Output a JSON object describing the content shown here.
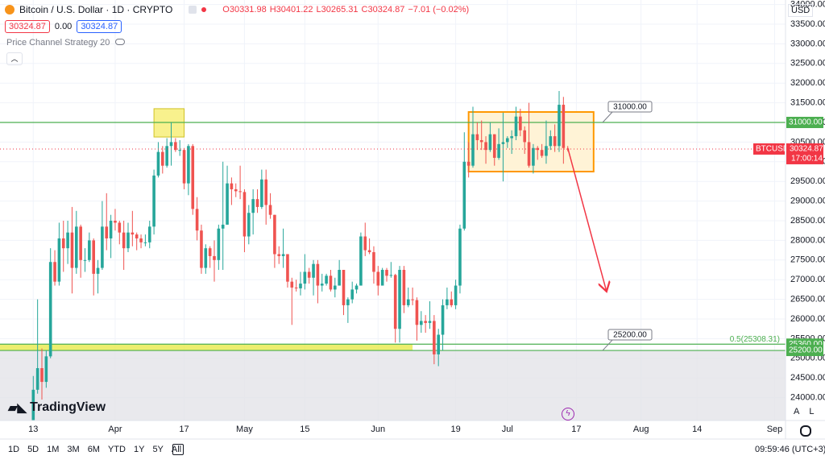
{
  "ui": {
    "symbol": "Bitcoin / U.S. Dollar · 1D · CRYPTO",
    "ohlc": [
      "O30331.98",
      "H30401.22",
      "L30265.31",
      "C30324.87",
      "−7.01 (−0.02%)"
    ],
    "sell": "30324.87",
    "spread": "0.00",
    "buy": "30324.87",
    "indicator": "Price Channel Strategy 20",
    "currency": "USD",
    "countdown": "17:00:14",
    "logo": "TradingView",
    "ranges": [
      "1D",
      "5D",
      "1M",
      "3M",
      "6M",
      "YTD",
      "1Y",
      "5Y",
      "All"
    ],
    "clock": "09:59:46 (UTC+3)",
    "scale_buttons": [
      "A",
      "L"
    ],
    "fib_label": "0.5(25308.31)"
  },
  "chart_data": {
    "type": "candlestick",
    "x": [
      "Mar 13",
      "Mar 14",
      "Mar 15",
      "Mar 16",
      "Mar 17",
      "Mar 18",
      "Mar 19",
      "Mar 20",
      "Mar 21",
      "Mar 22",
      "Mar 23",
      "Mar 24",
      "Mar 25",
      "Mar 26",
      "Mar 27",
      "Mar 28",
      "Mar 29",
      "Mar 30",
      "Mar 31",
      "Apr 1",
      "Apr 2",
      "Apr 3",
      "Apr 4",
      "Apr 5",
      "Apr 6",
      "Apr 7",
      "Apr 8",
      "Apr 9",
      "Apr 10",
      "Apr 11",
      "Apr 12",
      "Apr 13",
      "Apr 14",
      "Apr 15",
      "Apr 16",
      "Apr 17",
      "Apr 18",
      "Apr 19",
      "Apr 20",
      "Apr 21",
      "Apr 22",
      "Apr 23",
      "Apr 24",
      "Apr 25",
      "Apr 26",
      "Apr 27",
      "Apr 28",
      "Apr 29",
      "Apr 30",
      "May 1",
      "May 2",
      "May 3",
      "May 4",
      "May 5",
      "May 6",
      "May 7",
      "May 8",
      "May 9",
      "May 10",
      "May 11",
      "May 12",
      "May 13",
      "May 14",
      "May 15",
      "May 16",
      "May 17",
      "May 18",
      "May 19",
      "May 20",
      "May 21",
      "May 22",
      "May 23",
      "May 24",
      "May 25",
      "May 26",
      "May 27",
      "May 28",
      "May 29",
      "May 30",
      "May 31",
      "Jun 1",
      "Jun 2",
      "Jun 3",
      "Jun 4",
      "Jun 5",
      "Jun 6",
      "Jun 7",
      "Jun 8",
      "Jun 9",
      "Jun 10",
      "Jun 11",
      "Jun 12",
      "Jun 13",
      "Jun 14",
      "Jun 15",
      "Jun 16",
      "Jun 17",
      "Jun 18",
      "Jun 19",
      "Jun 20",
      "Jun 21",
      "Jun 22",
      "Jun 23",
      "Jun 24",
      "Jun 25",
      "Jun 26",
      "Jun 27",
      "Jun 28",
      "Jun 29",
      "Jun 30",
      "Jul 1",
      "Jul 2",
      "Jul 3",
      "Jul 4",
      "Jul 5",
      "Jul 6",
      "Jul 7",
      "Jul 8",
      "Jul 9",
      "Jul 10",
      "Jul 11",
      "Jul 12",
      "Jul 13",
      "Jul 14",
      "Jul 15"
    ],
    "series": [
      {
        "name": "BTCUSD",
        "up_color": "#26a69a",
        "down_color": "#ef5350",
        "open": [
          22150,
          24200,
          24750,
          24400,
          25050,
          27450,
          26950,
          28050,
          27800,
          28200,
          27300,
          28350,
          27500,
          27500,
          28000,
          27150,
          27300,
          28350,
          28050,
          28500,
          28450,
          28200,
          27800,
          28200,
          28150,
          28050,
          27950,
          27950,
          28350,
          29650,
          30250,
          29900,
          30400,
          30500,
          30300,
          30300,
          29450,
          30400,
          28800,
          28250,
          27300,
          27800,
          27600,
          27500,
          28300,
          28400,
          29450,
          29300,
          29250,
          29230,
          28100,
          28700,
          29050,
          28850,
          29550,
          28900,
          28650,
          27650,
          27600,
          27650,
          26950,
          26800,
          26780,
          26900,
          27200,
          27050,
          27400,
          26850,
          26900,
          27100,
          26750,
          26850,
          27250,
          26350,
          26500,
          26750,
          26850,
          28100,
          27750,
          27700,
          27200,
          26850,
          27250,
          27100,
          27120,
          25750,
          27250,
          26350,
          26500,
          26480,
          25850,
          25950,
          25900,
          25950,
          25100,
          25600,
          26350,
          26500,
          26350,
          26850,
          28300,
          30000,
          29900,
          30700,
          30550,
          30500,
          30300,
          30700,
          30100,
          30450,
          30500,
          30600,
          30650,
          31150,
          30800,
          30500,
          29900,
          30350,
          30300,
          30150,
          30400,
          30650,
          30400,
          31450,
          30331.98
        ],
        "high": [
          24550,
          26500,
          25250,
          25200,
          27800,
          27750,
          28450,
          28500,
          28500,
          28850,
          28750,
          28400,
          27800,
          28200,
          28050,
          27500,
          29000,
          29200,
          28650,
          28800,
          28500,
          28500,
          28450,
          28750,
          28200,
          28150,
          28150,
          28500,
          29800,
          30500,
          30400,
          30600,
          31000,
          30600,
          30550,
          30350,
          30450,
          30450,
          29100,
          28400,
          27900,
          27850,
          28000,
          28400,
          30000,
          29900,
          29600,
          29450,
          29900,
          29300,
          28900,
          29300,
          29300,
          29800,
          29800,
          29200,
          28650,
          27850,
          28300,
          27650,
          27050,
          27000,
          27200,
          27650,
          27300,
          27500,
          27500,
          27150,
          27150,
          27250,
          27050,
          27500,
          27250,
          26550,
          26950,
          26900,
          28200,
          28450,
          28050,
          27850,
          27350,
          27300,
          27300,
          27450,
          27150,
          27350,
          27350,
          26800,
          26800,
          26550,
          26200,
          26100,
          26450,
          26100,
          25750,
          26500,
          26800,
          26700,
          27000,
          28400,
          30750,
          30500,
          31400,
          31000,
          31050,
          30650,
          31000,
          30700,
          30850,
          31250,
          30650,
          30800,
          31400,
          31350,
          30900,
          31500,
          30450,
          30400,
          30450,
          31050,
          30800,
          30950,
          31800,
          31650,
          30401.22
        ],
        "low": [
          21900,
          24100,
          23950,
          24250,
          25000,
          26850,
          26850,
          27200,
          27400,
          26650,
          27150,
          27050,
          27200,
          27450,
          26600,
          26650,
          27250,
          27750,
          27550,
          28250,
          27900,
          27250,
          27700,
          27850,
          27750,
          27800,
          27850,
          27800,
          28150,
          29600,
          29700,
          29850,
          29900,
          30250,
          30150,
          29300,
          29150,
          28650,
          28000,
          27150,
          27150,
          27300,
          26950,
          27250,
          27250,
          28400,
          28900,
          29100,
          29050,
          27700,
          27900,
          28150,
          28700,
          28800,
          28400,
          28550,
          27300,
          27400,
          27300,
          26800,
          25850,
          26700,
          26600,
          26750,
          26900,
          26600,
          26400,
          26700,
          26850,
          26700,
          26550,
          26850,
          26100,
          25900,
          26400,
          26650,
          26850,
          27600,
          27650,
          26900,
          26600,
          26850,
          26950,
          27050,
          25400,
          25400,
          26150,
          26300,
          26350,
          25450,
          25650,
          25650,
          25750,
          24850,
          24800,
          25200,
          26250,
          26300,
          26250,
          26650,
          28250,
          29600,
          29850,
          30300,
          30300,
          29950,
          30250,
          29900,
          30050,
          29500,
          30350,
          30200,
          30550,
          30650,
          30200,
          29850,
          29700,
          30050,
          30100,
          29950,
          30300,
          30250,
          30250,
          29950,
          30265.31
        ],
        "close": [
          24200,
          24750,
          24400,
          25050,
          27450,
          26950,
          28050,
          27800,
          28200,
          27300,
          28350,
          27500,
          27500,
          28000,
          27150,
          27300,
          28350,
          28050,
          28500,
          28450,
          28200,
          27800,
          28200,
          28150,
          28050,
          27950,
          27950,
          28350,
          29650,
          30250,
          29900,
          30400,
          30500,
          30300,
          30300,
          29450,
          30400,
          28800,
          28250,
          27300,
          27800,
          27600,
          27500,
          28300,
          28400,
          29450,
          29300,
          29250,
          29230,
          28100,
          28700,
          29050,
          28850,
          29550,
          28900,
          28650,
          27650,
          27600,
          27650,
          26950,
          26800,
          26780,
          26900,
          27200,
          27050,
          27400,
          26850,
          26900,
          27100,
          26750,
          26850,
          27250,
          26350,
          26500,
          26750,
          26850,
          28100,
          27750,
          27700,
          27200,
          26850,
          27250,
          27100,
          27120,
          25750,
          27250,
          26350,
          26500,
          26480,
          25850,
          25950,
          25900,
          25950,
          25100,
          25600,
          26350,
          26500,
          26350,
          26850,
          28300,
          30000,
          29900,
          30700,
          30550,
          30500,
          30300,
          30700,
          30100,
          30450,
          30500,
          30600,
          30650,
          31150,
          30800,
          30500,
          29900,
          30350,
          30300,
          30150,
          30400,
          30650,
          30400,
          31450,
          30350,
          30324.87
        ]
      }
    ],
    "ylim": [
      23418,
      34115
    ],
    "yticks": [
      {
        "value": 24000,
        "label": "24000.00"
      },
      {
        "value": 24500,
        "label": "24500.00"
      },
      {
        "value": 25000,
        "label": "25000.00"
      },
      {
        "value": 25500,
        "label": "25500.00"
      },
      {
        "value": 26000,
        "label": "26000.00"
      },
      {
        "value": 26500,
        "label": "26500.00"
      },
      {
        "value": 27000,
        "label": "27000.00"
      },
      {
        "value": 27500,
        "label": "27500.00"
      },
      {
        "value": 28000,
        "label": "28000.00"
      },
      {
        "value": 28500,
        "label": "28500.00"
      },
      {
        "value": 29000,
        "label": "29000.00"
      },
      {
        "value": 29500,
        "label": "29500.00"
      },
      {
        "value": 30000,
        "label": "30000.00"
      },
      {
        "value": 30500,
        "label": "30500.00"
      },
      {
        "value": 31000,
        "label": "31000.00"
      },
      {
        "value": 31500,
        "label": "31500.00"
      },
      {
        "value": 32000,
        "label": "32000.00"
      },
      {
        "value": 32500,
        "label": "32500.00"
      },
      {
        "value": 33000,
        "label": "33000.00"
      },
      {
        "value": 33500,
        "label": "33500.00"
      },
      {
        "value": 34000,
        "label": "34000.00"
      }
    ],
    "xticks": [
      {
        "value": "Mar 13",
        "label": "13"
      },
      {
        "value": "Apr 1",
        "label": "Apr"
      },
      {
        "value": "Apr 17",
        "label": "17"
      },
      {
        "value": "May 1",
        "label": "May"
      },
      {
        "value": "May 15",
        "label": "15"
      },
      {
        "value": "Jun 1",
        "label": "Jun"
      },
      {
        "value": "Jun 19",
        "label": "19"
      },
      {
        "value": "Jul 1",
        "label": "Jul"
      },
      {
        "value": "Jul 17",
        "label": "17"
      },
      {
        "value": "Aug 1",
        "label": "Aug"
      },
      {
        "value": "Aug 14",
        "label": "14"
      },
      {
        "value": "Sep 1",
        "label": "Sep"
      }
    ],
    "grid": true,
    "hlines": [
      {
        "value": 31000,
        "label": "31000.00",
        "color": "#4caf50",
        "callout": true
      },
      {
        "value": 25360,
        "label": "25360.00",
        "color": "#4caf50",
        "callout": false
      },
      {
        "value": 25200,
        "label": "25200.00",
        "color": "#4caf50",
        "callout": true
      }
    ],
    "zone": {
      "low": 25200,
      "high": 25360,
      "end": "Jun 9",
      "color": "#e8ea4a"
    },
    "channel": {
      "x": [
        "Jun 22",
        "Jul 21"
      ],
      "y": [
        29750,
        31266
      ],
      "color": "#ff9800"
    },
    "highlight": {
      "x": [
        "Apr 10",
        "Apr 17"
      ],
      "y": [
        30630,
        31350
      ],
      "color": "#f7ef7a"
    },
    "arrow": {
      "x": [
        "Jul 15",
        "Jul 24"
      ],
      "y": [
        30350,
        26700
      ],
      "color": "#f23645"
    }
  }
}
